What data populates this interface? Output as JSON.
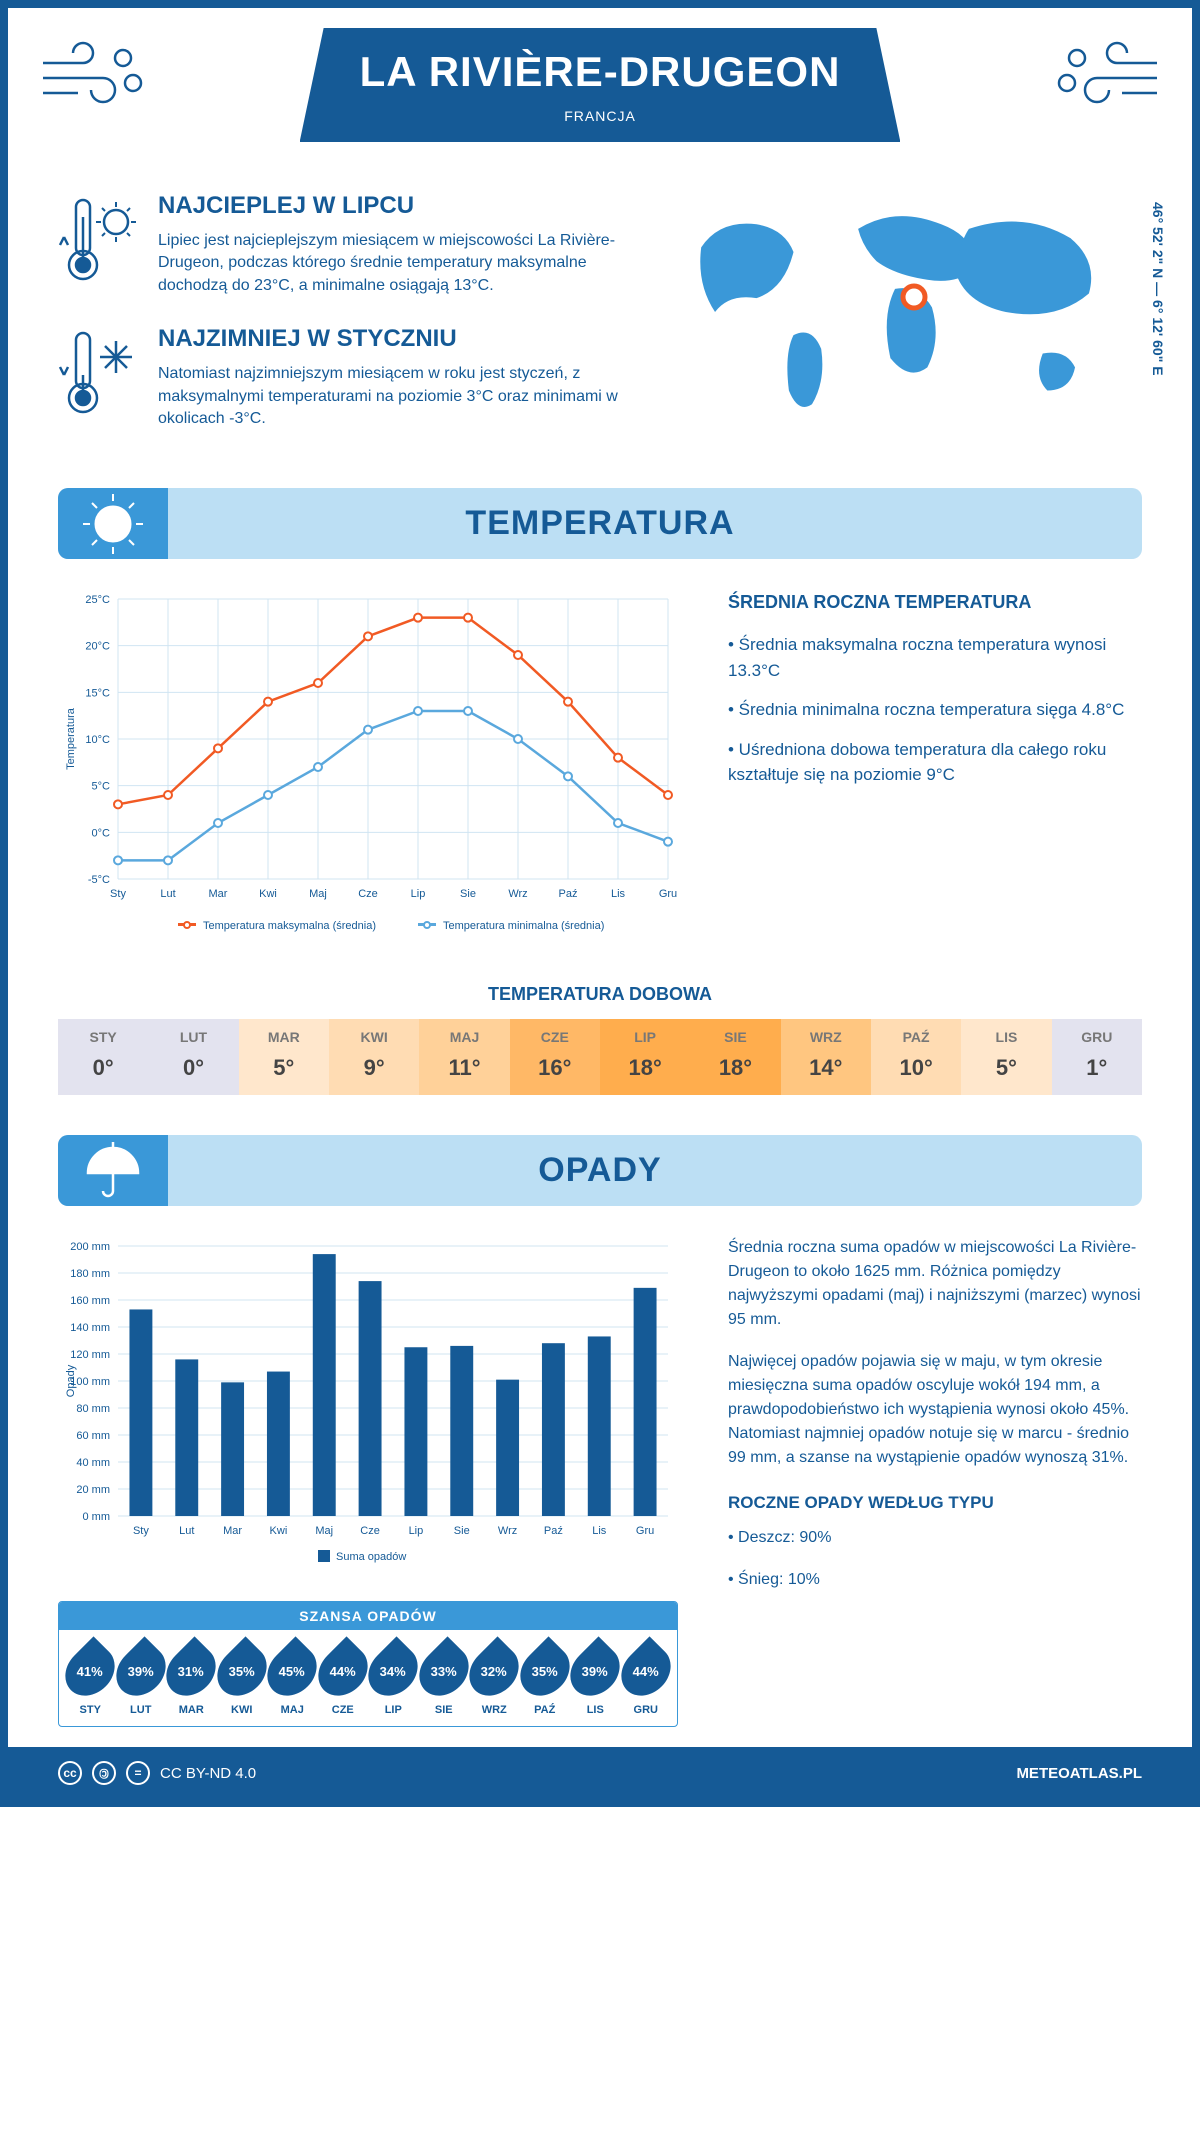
{
  "colors": {
    "primary": "#155a96",
    "light": "#bcdff4",
    "mid": "#3a98d8",
    "max_line": "#f15a24",
    "min_line": "#5aa8dd"
  },
  "header": {
    "title": "LA RIVIÈRE-DRUGEON",
    "subtitle": "FRANCJA"
  },
  "coords": "46° 52' 2\" N — 6° 12' 60\" E",
  "facts": {
    "warm": {
      "title": "NAJCIEPLEJ W LIPCU",
      "text": "Lipiec jest najcieplejszym miesiącem w miejscowości La Rivière-Drugeon, podczas którego średnie temperatury maksymalne dochodzą do 23°C, a minimalne osiągają 13°C."
    },
    "cold": {
      "title": "NAJZIMNIEJ W STYCZNIU",
      "text": "Natomiast najzimniejszym miesiącem w roku jest styczeń, z maksymalnymi temperaturami na poziomie 3°C oraz minimami w okolicach -3°C."
    }
  },
  "temperature": {
    "section_title": "TEMPERATURA",
    "months": [
      "Sty",
      "Lut",
      "Mar",
      "Kwi",
      "Maj",
      "Cze",
      "Lip",
      "Sie",
      "Wrz",
      "Paź",
      "Lis",
      "Gru"
    ],
    "max_series": [
      3,
      4,
      9,
      14,
      16,
      21,
      23,
      23,
      19,
      14,
      8,
      4
    ],
    "min_series": [
      -3,
      -3,
      1,
      4,
      7,
      11,
      13,
      13,
      10,
      6,
      1,
      -1
    ],
    "y_min": -5,
    "y_max": 25,
    "y_step": 5,
    "y_unit": "°C",
    "y_label": "Temperatura",
    "legend_max": "Temperatura maksymalna (średnia)",
    "legend_min": "Temperatura minimalna (średnia)",
    "stats_title": "ŚREDNIA ROCZNA TEMPERATURA",
    "stat1": "• Średnia maksymalna roczna temperatura wynosi 13.3°C",
    "stat2": "• Średnia minimalna roczna temperatura sięga 4.8°C",
    "stat3": "• Uśredniona dobowa temperatura dla całego roku kształtuje się na poziomie 9°C",
    "daily_title": "TEMPERATURA DOBOWA",
    "daily_months": [
      "STY",
      "LUT",
      "MAR",
      "KWI",
      "MAJ",
      "CZE",
      "LIP",
      "SIE",
      "WRZ",
      "PAŹ",
      "LIS",
      "GRU"
    ],
    "daily_values": [
      "0°",
      "0°",
      "5°",
      "9°",
      "11°",
      "16°",
      "18°",
      "18°",
      "14°",
      "10°",
      "5°",
      "1°"
    ],
    "daily_colors": [
      "#e3e3ef",
      "#e3e3ef",
      "#ffe7cc",
      "#ffdcb3",
      "#ffd199",
      "#ffb866",
      "#ffad4d",
      "#ffad4d",
      "#ffc680",
      "#ffdcb3",
      "#ffe7cc",
      "#e3e3ef"
    ]
  },
  "rain": {
    "section_title": "OPADY",
    "months": [
      "Sty",
      "Lut",
      "Mar",
      "Kwi",
      "Maj",
      "Cze",
      "Lip",
      "Sie",
      "Wrz",
      "Paź",
      "Lis",
      "Gru"
    ],
    "values": [
      153,
      116,
      99,
      107,
      194,
      174,
      125,
      126,
      101,
      128,
      133,
      169
    ],
    "y_min": 0,
    "y_max": 200,
    "y_step": 20,
    "y_unit": " mm",
    "y_label": "Opady",
    "legend": "Suma opadów",
    "text1": "Średnia roczna suma opadów w miejscowości La Rivière-Drugeon to około 1625 mm. Różnica pomiędzy najwyższymi opadami (maj) i najniższymi (marzec) wynosi 95 mm.",
    "text2": "Najwięcej opadów pojawia się w maju, w tym okresie miesięczna suma opadów oscyluje wokół 194 mm, a prawdopodobieństwo ich wystąpienia wynosi około 45%. Natomiast najmniej opadów notuje się w marcu - średnio 99 mm, a szanse na wystąpienie opadów wynoszą 31%.",
    "chance_title": "SZANSA OPADÓW",
    "chance_months": [
      "STY",
      "LUT",
      "MAR",
      "KWI",
      "MAJ",
      "CZE",
      "LIP",
      "SIE",
      "WRZ",
      "PAŹ",
      "LIS",
      "GRU"
    ],
    "chance_values": [
      "41%",
      "39%",
      "31%",
      "35%",
      "45%",
      "44%",
      "34%",
      "33%",
      "32%",
      "35%",
      "39%",
      "44%"
    ],
    "type_title": "ROCZNE OPADY WEDŁUG TYPU",
    "type1": "• Deszcz: 90%",
    "type2": "• Śnieg: 10%"
  },
  "footer": {
    "license": "CC BY-ND 4.0",
    "site": "METEOATLAS.PL"
  }
}
